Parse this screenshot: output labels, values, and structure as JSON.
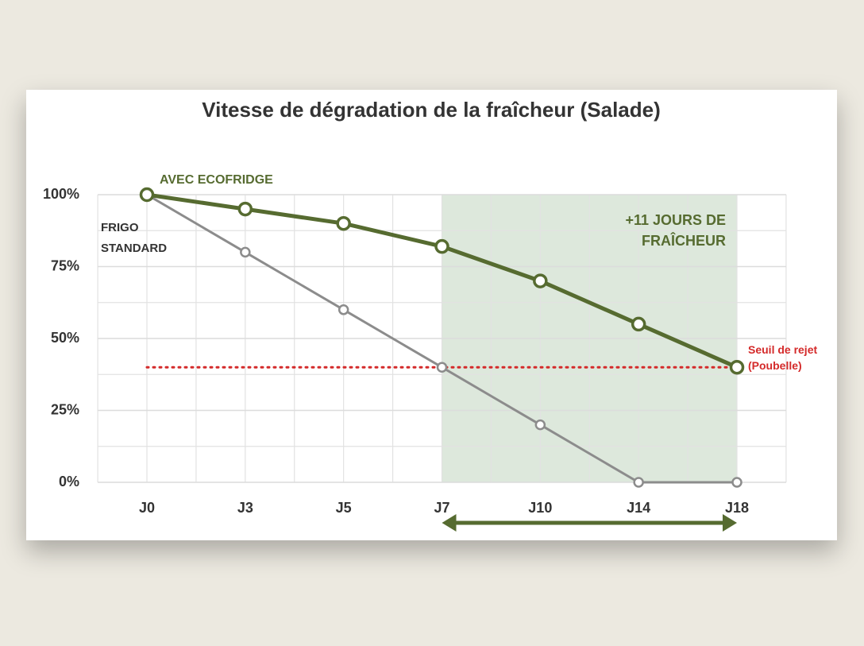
{
  "chart_data": {
    "type": "line",
    "title": "Vitesse de dégradation de la fraîcheur (Salade)",
    "categories": [
      "J0",
      "J3",
      "J5",
      "J7",
      "J10",
      "J14",
      "J18"
    ],
    "series": [
      {
        "name": "AVEC ECOFRIDGE",
        "color": "#566b30",
        "values": [
          100,
          95,
          90,
          82,
          70,
          55,
          40
        ]
      },
      {
        "name": "FRIGO STANDARD",
        "color": "#8c8c8c",
        "values": [
          100,
          80,
          60,
          40,
          20,
          0,
          0
        ]
      }
    ],
    "ylim": [
      0,
      100
    ],
    "yticks": [
      {
        "value": 0,
        "label": "0%"
      },
      {
        "value": 25,
        "label": "25%"
      },
      {
        "value": 50,
        "label": "50%"
      },
      {
        "value": 75,
        "label": "75%"
      },
      {
        "value": 100,
        "label": "100%"
      }
    ],
    "grid": true,
    "threshold": {
      "value": 40,
      "label": "Seuil de rejet (Poubelle)",
      "color": "#d42a2a"
    },
    "highlight": {
      "from": "J7",
      "to": "J18",
      "label": "+11 JOURS DE FRAÎCHEUR",
      "color": "#dde8dc"
    }
  }
}
